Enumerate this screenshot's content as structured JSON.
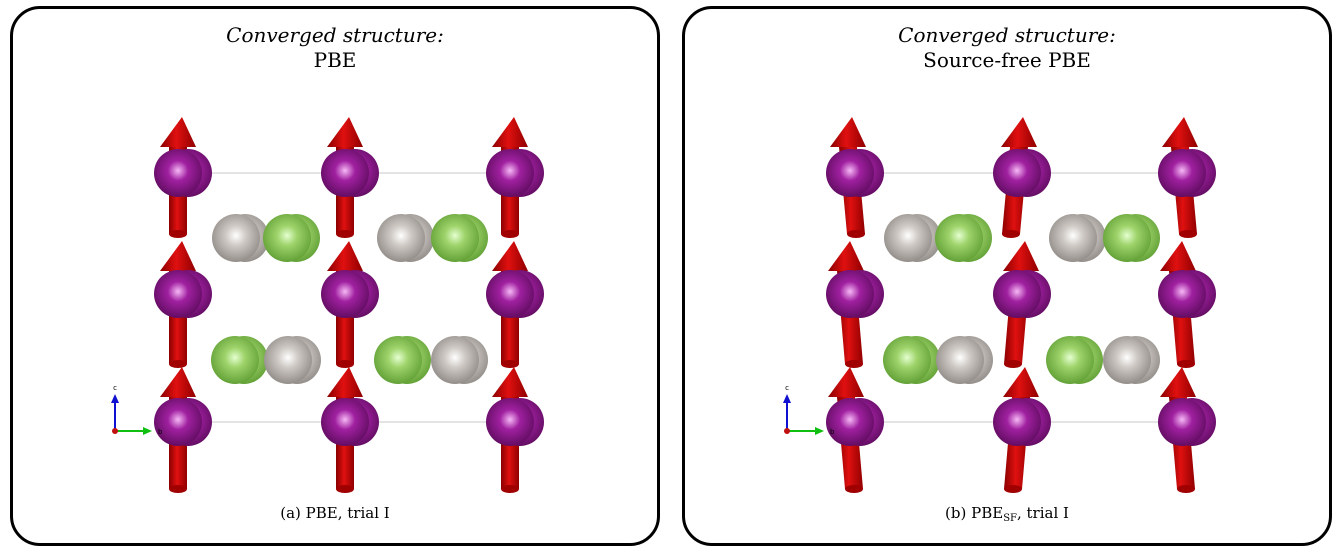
{
  "panels": [
    {
      "id": "a",
      "title_line1": "Converged structure:",
      "title_line2": "PBE",
      "caption": "(a) PBE, trial I",
      "tilted_spins": false
    },
    {
      "id": "b",
      "title_line1": "Converged structure:",
      "title_line2": "Source-free PBE",
      "caption_prefix": "(b) PBE",
      "caption_sub": "SF",
      "caption_suffix": ", trial I",
      "tilted_spins": true
    }
  ],
  "axes_triad": {
    "c_label": "c",
    "b_label": "b"
  },
  "colors": {
    "magnetic_atom": "#a020a0",
    "light_atom": "#9ed36a",
    "grey_atom": "#cfcac5",
    "spin_arrow": "#e01010",
    "axis_c": "#1010d0",
    "axis_b": "#10c010",
    "axis_a": "#c01010"
  }
}
